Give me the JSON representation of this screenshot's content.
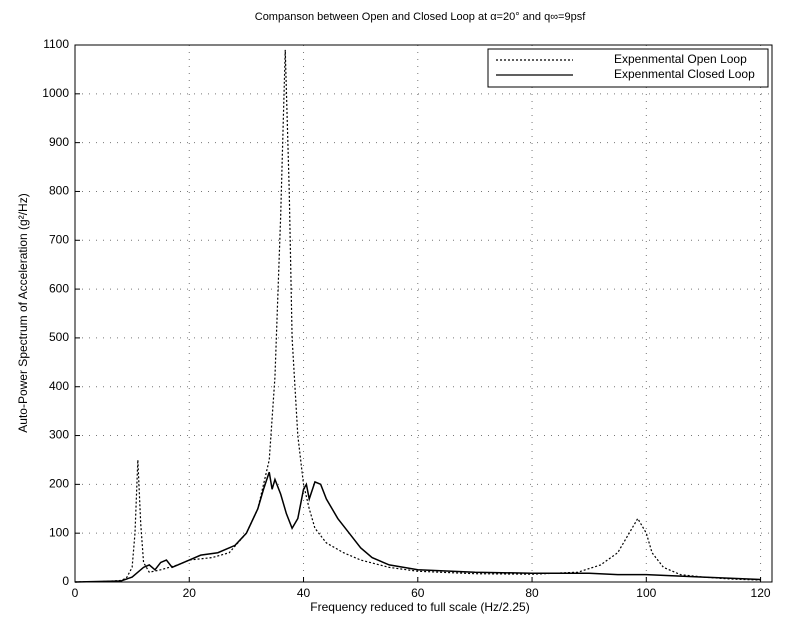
{
  "chart_data": {
    "type": "line",
    "title": "Companson between Open and Closed Loop at α=20° and q∞=9psf",
    "xlabel": "Frequency reduced to full scale (Hz/2.25)",
    "ylabel": "Auto-Power Spectrum of Acceleration (g²/Hz)",
    "xlim": [
      0,
      122
    ],
    "ylim": [
      0,
      1100
    ],
    "xticks": [
      0,
      20,
      40,
      60,
      80,
      100,
      120
    ],
    "yticks": [
      0,
      100,
      200,
      300,
      400,
      500,
      600,
      700,
      800,
      900,
      1000,
      1100
    ],
    "grid": true,
    "legend": "upper right",
    "series": [
      {
        "name": "Expenmental Open Loop",
        "color": "#000000",
        "dash": "dotted",
        "x": [
          0,
          5,
          8,
          9,
          10,
          10.5,
          11,
          11.5,
          12,
          13,
          15,
          18,
          20,
          24,
          27,
          30,
          32,
          34,
          35,
          36,
          36.8,
          37.5,
          38,
          39,
          40,
          41,
          42,
          44,
          47,
          50,
          55,
          60,
          70,
          80,
          88,
          92,
          95,
          97,
          98.5,
          100,
          101,
          103,
          106,
          110,
          115,
          120
        ],
        "values": [
          0,
          1,
          3,
          8,
          30,
          100,
          250,
          120,
          40,
          20,
          25,
          35,
          45,
          50,
          60,
          100,
          150,
          250,
          420,
          750,
          1090,
          800,
          500,
          300,
          200,
          150,
          110,
          80,
          60,
          45,
          30,
          22,
          17,
          16,
          20,
          35,
          60,
          100,
          130,
          100,
          60,
          30,
          15,
          10,
          6,
          4
        ]
      },
      {
        "name": "Expenmental Closed Loop",
        "color": "#000000",
        "dash": "solid",
        "x": [
          0,
          8,
          10,
          12,
          13,
          14,
          15,
          16,
          17,
          18,
          20,
          22,
          25,
          28,
          30,
          32,
          33,
          34,
          34.5,
          35,
          36,
          37,
          38,
          39,
          40,
          40.5,
          41,
          42,
          43,
          44,
          46,
          48,
          50,
          52,
          55,
          60,
          70,
          80,
          90,
          95,
          100,
          110,
          120
        ],
        "values": [
          0,
          2,
          10,
          30,
          35,
          25,
          40,
          45,
          30,
          35,
          45,
          55,
          60,
          75,
          100,
          150,
          190,
          225,
          190,
          210,
          180,
          140,
          110,
          130,
          190,
          200,
          170,
          205,
          200,
          170,
          130,
          100,
          70,
          50,
          35,
          25,
          20,
          18,
          18,
          15,
          15,
          10,
          5
        ]
      }
    ]
  }
}
